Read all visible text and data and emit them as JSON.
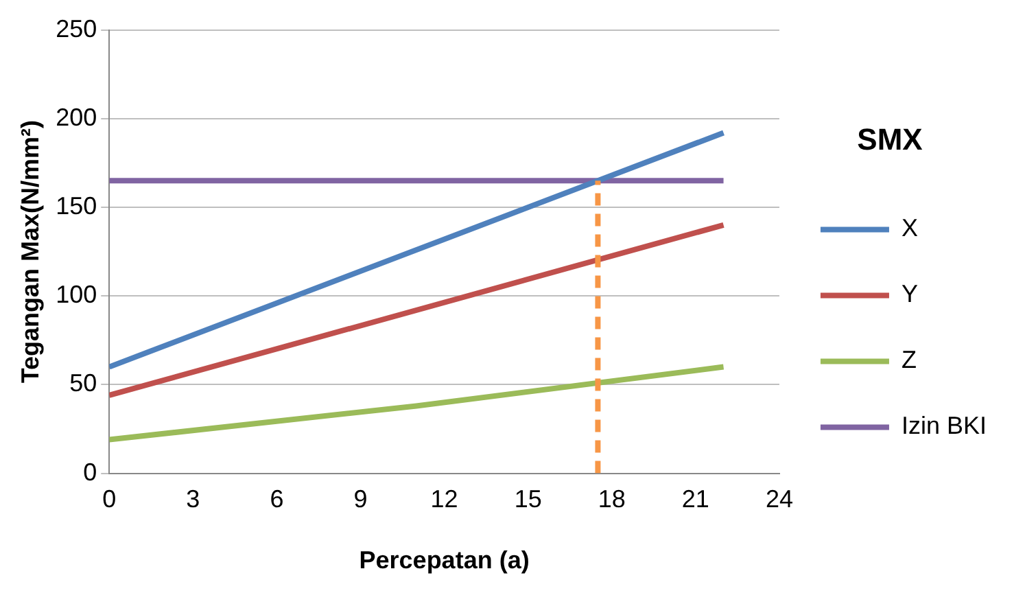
{
  "chart_data": {
    "type": "line",
    "xlabel": "Percepatan (a)",
    "ylabel": "Tegangan Max(N/mm²)",
    "legend_title": "SMX",
    "legend": "right",
    "grid": "y",
    "marker": "none",
    "line_style": "solid",
    "xlim": [
      0,
      24
    ],
    "xticks": [
      0,
      3,
      6,
      9,
      12,
      15,
      18,
      21,
      24
    ],
    "ylim": [
      0,
      250
    ],
    "yticks": [
      0,
      50,
      100,
      150,
      200,
      250
    ],
    "series": [
      {
        "name": "X",
        "color": "#4f81bd",
        "x": [
          0,
          22
        ],
        "values": [
          60,
          192
        ]
      },
      {
        "name": "Y",
        "color": "#c0504d",
        "x": [
          0,
          22
        ],
        "values": [
          44,
          140
        ]
      },
      {
        "name": "Z",
        "color": "#9bbb59",
        "x": [
          0,
          11,
          22
        ],
        "values": [
          19,
          38,
          60
        ]
      },
      {
        "name": "Izin BKI",
        "color": "#8064a2",
        "x": [
          0,
          22
        ],
        "values": [
          165,
          165
        ]
      },
      {
        "color": "#f79646",
        "x": [
          17.5,
          17.5
        ],
        "values": [
          0,
          165
        ],
        "line_style": "dashed"
      }
    ]
  }
}
